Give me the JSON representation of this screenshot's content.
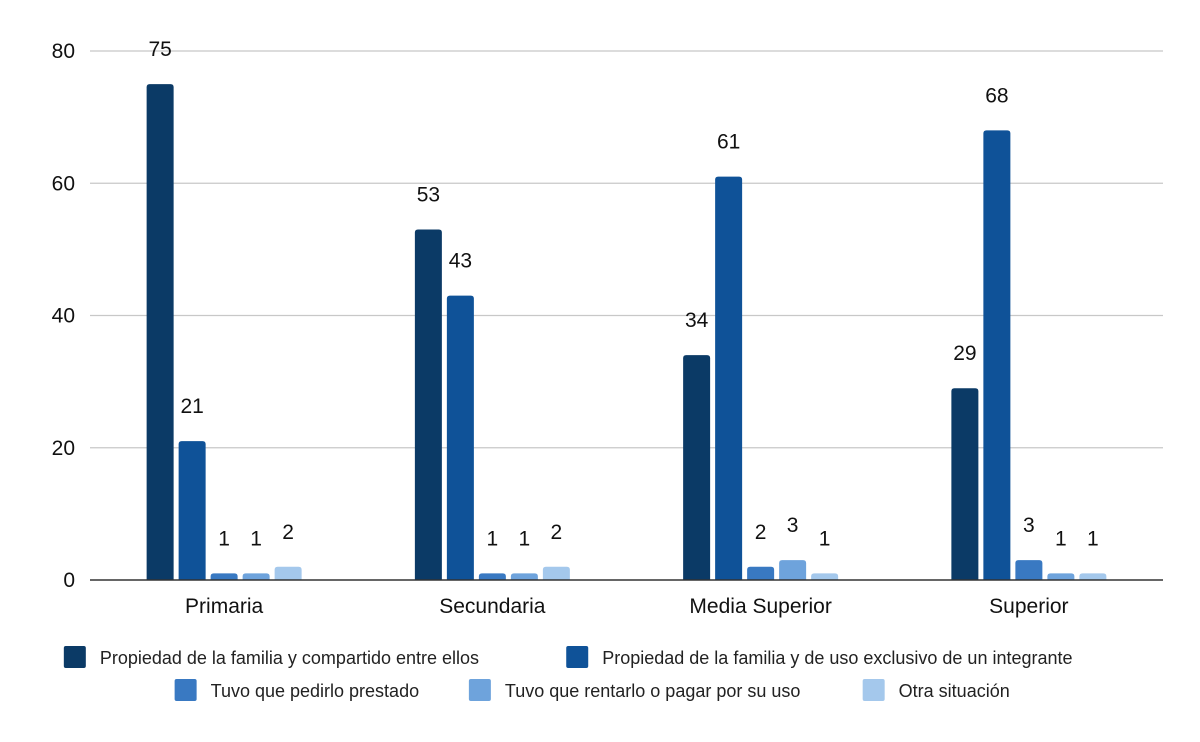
{
  "chart_data": {
    "type": "bar",
    "categories": [
      "Primaria",
      "Secundaria",
      "Media Superior",
      "Superior"
    ],
    "series": [
      {
        "name": "Propiedad de la familia y compartido entre ellos",
        "color": "#0b3a66",
        "values": [
          75,
          53,
          34,
          29
        ]
      },
      {
        "name": "Propiedad de la familia y de uso exclusivo de un integrante",
        "color": "#0f5298",
        "values": [
          21,
          43,
          61,
          68
        ]
      },
      {
        "name": "Tuvo que pedirlo prestado",
        "color": "#3979c2",
        "values": [
          1,
          1,
          2,
          3
        ]
      },
      {
        "name": "Tuvo que rentarlo o pagar por su uso",
        "color": "#6ea3dc",
        "values": [
          1,
          1,
          3,
          1
        ]
      },
      {
        "name": "Otra situación",
        "color": "#a4c8ec",
        "values": [
          2,
          2,
          1,
          1
        ]
      }
    ],
    "yticks": [
      0,
      20,
      40,
      60,
      80
    ],
    "ylim": [
      0,
      80
    ],
    "grid": true,
    "legend_position": "bottom",
    "title": "",
    "xlabel": "",
    "ylabel": ""
  }
}
